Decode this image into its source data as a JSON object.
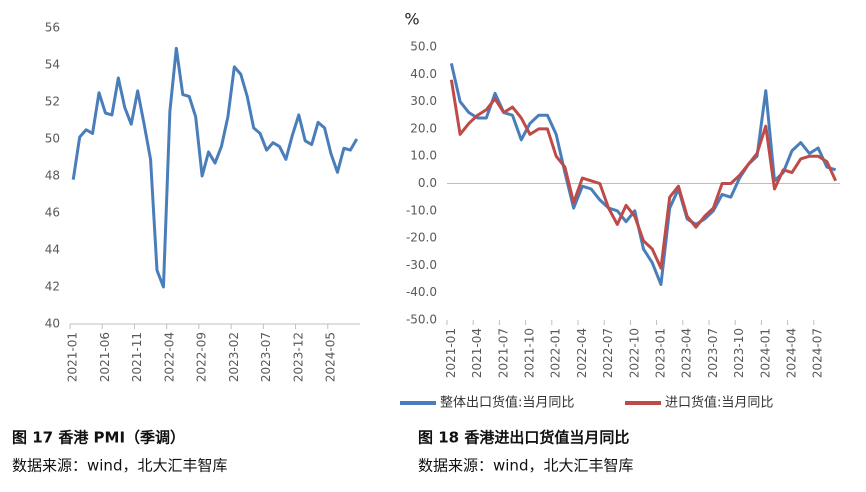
{
  "chart_data": [
    {
      "type": "line",
      "title": "图 17  香港 PMI（季调）",
      "source": "数据来源：wind，北大汇丰智库",
      "categories": [
        "2021-01",
        null,
        null,
        null,
        null,
        "2021-06",
        null,
        null,
        null,
        null,
        "2021-11",
        null,
        null,
        null,
        null,
        "2022-04",
        null,
        null,
        null,
        null,
        "2022-09",
        null,
        null,
        null,
        null,
        "2023-02",
        null,
        null,
        null,
        null,
        "2023-07",
        null,
        null,
        null,
        null,
        "2023-12",
        null,
        null,
        null,
        null,
        "2024-05",
        null,
        null,
        null,
        null
      ],
      "series": [
        {
          "name": "香港PMI",
          "color": "#4a7ebb",
          "values": [
            47.8,
            50.1,
            50.5,
            50.3,
            52.5,
            51.4,
            51.3,
            53.3,
            51.7,
            50.8,
            52.6,
            50.8,
            48.9,
            42.9,
            42.0,
            51.5,
            54.9,
            52.4,
            52.3,
            51.2,
            48.0,
            49.3,
            48.7,
            49.6,
            51.2,
            53.9,
            53.5,
            52.3,
            50.6,
            50.3,
            49.4,
            49.8,
            49.6,
            48.9,
            50.2,
            51.3,
            49.9,
            49.7,
            50.9,
            50.6,
            49.2,
            48.2,
            49.5,
            49.4,
            50.0
          ]
        }
      ],
      "ylim": [
        40,
        56
      ],
      "yticks": [
        40,
        42,
        44,
        46,
        48,
        50,
        52,
        54,
        56
      ],
      "grid": false,
      "legend": false
    },
    {
      "type": "line",
      "title": "图 18  香港进出口货值当月同比",
      "source": "数据来源：wind，北大汇丰智库",
      "y_label": "%",
      "categories": [
        "2021-01",
        null,
        null,
        "2021-04",
        null,
        null,
        "2021-07",
        null,
        null,
        "2021-10",
        null,
        null,
        "2022-01",
        null,
        null,
        "2022-04",
        null,
        null,
        "2022-07",
        null,
        null,
        "2022-10",
        null,
        null,
        "2023-01",
        null,
        null,
        "2023-04",
        null,
        null,
        "2023-07",
        null,
        null,
        "2023-10",
        null,
        null,
        "2024-01",
        null,
        null,
        "2024-04",
        null,
        null,
        "2024-07",
        null,
        null
      ],
      "series": [
        {
          "name": "整体出口货值:当月同比",
          "color": "#4a7ebb",
          "values": [
            44,
            30,
            26,
            24,
            24,
            33,
            26,
            25,
            16,
            22,
            25,
            25,
            18,
            4,
            -9,
            -1,
            -2,
            -6,
            -9,
            -10,
            -14,
            -10,
            -24,
            -29,
            -37,
            -9,
            -2,
            -13,
            -15,
            -13,
            -10,
            -4,
            -5,
            2,
            7,
            10,
            34,
            1,
            4,
            12,
            15,
            11,
            13,
            6,
            5
          ]
        },
        {
          "name": "进口货值:当月同比",
          "color": "#be4b48",
          "values": [
            38,
            18,
            22,
            25,
            27,
            31,
            26,
            28,
            24,
            18,
            20,
            20,
            10,
            6,
            -7,
            2,
            1,
            0,
            -9,
            -15,
            -8,
            -12,
            -21,
            -24,
            -31,
            -5,
            -1,
            -12,
            -16,
            -12,
            -9,
            0,
            0,
            3,
            7,
            11,
            21,
            -2,
            5,
            4,
            9,
            10,
            10,
            8,
            1
          ]
        }
      ],
      "ylim": [
        -50,
        50
      ],
      "yticks": [
        {
          "value": -50,
          "label": "-50.0"
        },
        {
          "value": -40,
          "label": "-40.0"
        },
        {
          "value": -30,
          "label": "-30.0"
        },
        {
          "value": -20,
          "label": "-20.0"
        },
        {
          "value": -10,
          "label": "-10.0"
        },
        {
          "value": 0,
          "label": "0.0"
        },
        {
          "value": 10,
          "label": "10.0"
        },
        {
          "value": 20,
          "label": "20.0"
        },
        {
          "value": 30,
          "label": "30.0"
        },
        {
          "value": 40,
          "label": "40.0"
        },
        {
          "value": 50,
          "label": "50.0"
        }
      ],
      "grid": false,
      "legend": "bottom"
    }
  ]
}
